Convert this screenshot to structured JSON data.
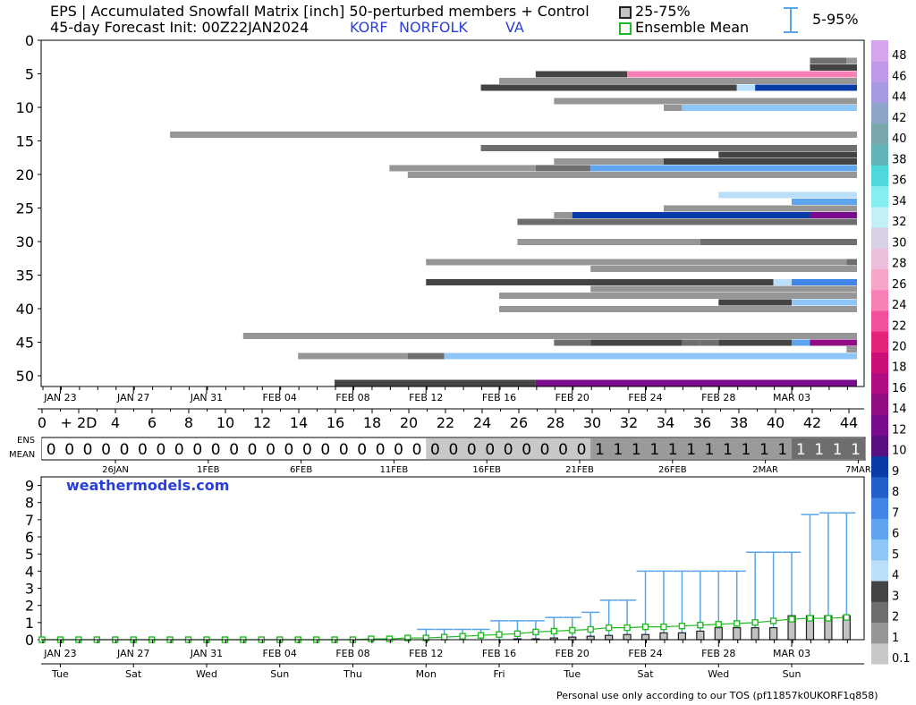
{
  "header": {
    "title_line1": "EPS | Accumulated Snowfall Matrix [inch]  50-perturbed members + Control",
    "title_line2": "45-day Forecast Init: 00Z22JAN2024",
    "station_code": "KORF",
    "station_name": "NORFOLK",
    "state": "VA",
    "legend_iqr": "25-75%",
    "legend_mean": "Ensemble Mean",
    "legend_range": "5-95%"
  },
  "watermark": "weathermodels.com",
  "footer": "Personal use only according to our TOS (pf11857k0UKORF1q858)",
  "ens_mean_label": [
    "ENS",
    "MEAN"
  ],
  "colors": {
    "iqr_box": "#c3c3c3",
    "mean": "#22bb22",
    "range": "#5aa5ea"
  },
  "chart_data": [
    {
      "type": "heatmap",
      "title": "Accumulated Snowfall Matrix [inch]",
      "y_axis_ticks": [
        "0",
        "5",
        "10",
        "15",
        "20",
        "25",
        "30",
        "35",
        "40",
        "45",
        "50"
      ],
      "date_ticks": [
        "JAN 23",
        "JAN 27",
        "JAN 31",
        "FEB 04",
        "FEB 08",
        "FEB 12",
        "FEB 16",
        "FEB 20",
        "FEB 24",
        "FEB 28",
        "MAR 03"
      ],
      "day_ticks": [
        "0",
        "+ 2D",
        "4",
        "6",
        "8",
        "10",
        "12",
        "14",
        "16",
        "18",
        "20",
        "22",
        "24",
        "26",
        "28",
        "30",
        "32",
        "34",
        "36",
        "38",
        "40",
        "42",
        "44"
      ],
      "colorbar": {
        "labels": [
          "0.1",
          "1",
          "2",
          "3",
          "4",
          "5",
          "6",
          "7",
          "8",
          "9",
          "10",
          "12",
          "14",
          "16",
          "18",
          "20",
          "22",
          "24",
          "26",
          "28",
          "30",
          "32",
          "34",
          "36",
          "38",
          "40",
          "42",
          "44",
          "46",
          "48"
        ],
        "colors": [
          "#c8c8c8",
          "#969696",
          "#6e6e6e",
          "#444444",
          "#b9dffb",
          "#8ec6f8",
          "#5fa4ee",
          "#3f86e6",
          "#2060c8",
          "#0a3ca8",
          "#581080",
          "#7a0a8e",
          "#920d84",
          "#b00c82",
          "#cc0e78",
          "#e6237b",
          "#f2509a",
          "#f880b6",
          "#f6a5c9",
          "#ecc0dc",
          "#d8d1e4",
          "#c2f0f6",
          "#84eef2",
          "#4fd8dc",
          "#5fb5b8",
          "#7aa7ab",
          "#8ea4c8",
          "#a79ae2",
          "#c09ae8",
          "#d6a4ec"
        ]
      },
      "members": [
        {
          "m": 3,
          "s": [
            [
              42,
              2
            ],
            [
              44,
              1
            ]
          ]
        },
        {
          "m": 4,
          "s": [
            [
              42,
              3
            ]
          ]
        },
        {
          "m": 5,
          "s": [
            [
              27,
              3
            ],
            [
              32,
              17
            ]
          ]
        },
        {
          "m": 6,
          "s": [
            [
              25,
              1
            ]
          ]
        },
        {
          "m": 7,
          "s": [
            [
              24,
              3
            ],
            [
              38,
              4
            ],
            [
              39,
              9
            ]
          ]
        },
        {
          "m": 9,
          "s": [
            [
              28,
              1
            ]
          ]
        },
        {
          "m": 10,
          "s": [
            [
              34,
              1
            ],
            [
              35,
              5
            ]
          ]
        },
        {
          "m": 14,
          "s": [
            [
              7,
              1
            ]
          ]
        },
        {
          "m": 16,
          "s": [
            [
              24,
              2
            ]
          ]
        },
        {
          "m": 18,
          "s": [
            [
              28,
              1
            ],
            [
              34,
              3
            ]
          ]
        },
        {
          "m": 17,
          "s": [
            [
              37,
              3
            ]
          ]
        },
        {
          "m": 19,
          "s": [
            [
              19,
              1
            ],
            [
              27,
              2
            ],
            [
              30,
              6
            ]
          ]
        },
        {
          "m": 20,
          "s": [
            [
              20,
              1
            ]
          ]
        },
        {
          "m": 23,
          "s": [
            [
              37,
              4
            ]
          ]
        },
        {
          "m": 24,
          "s": [
            [
              41,
              6
            ]
          ]
        },
        {
          "m": 25,
          "s": [
            [
              34,
              1
            ]
          ]
        },
        {
          "m": 26,
          "s": [
            [
              28,
              1
            ],
            [
              29,
              9
            ],
            [
              42,
              11
            ]
          ]
        },
        {
          "m": 27,
          "s": [
            [
              26,
              2
            ]
          ]
        },
        {
          "m": 30,
          "s": [
            [
              26,
              1
            ],
            [
              36,
              2
            ]
          ]
        },
        {
          "m": 33,
          "s": [
            [
              21,
              1
            ],
            [
              44,
              2
            ]
          ]
        },
        {
          "m": 34,
          "s": [
            [
              30,
              1
            ]
          ]
        },
        {
          "m": 36,
          "s": [
            [
              21,
              3
            ],
            [
              40,
              4
            ],
            [
              41,
              7
            ]
          ]
        },
        {
          "m": 37,
          "s": [
            [
              30,
              1
            ]
          ]
        },
        {
          "m": 38,
          "s": [
            [
              25,
              1
            ]
          ]
        },
        {
          "m": 39,
          "s": [
            [
              37,
              3
            ],
            [
              41,
              5
            ]
          ]
        },
        {
          "m": 40,
          "s": [
            [
              25,
              1
            ]
          ]
        },
        {
          "m": 44,
          "s": [
            [
              11,
              1
            ]
          ]
        },
        {
          "m": 45,
          "s": [
            [
              28,
              2
            ],
            [
              30,
              3
            ],
            [
              35,
              2
            ],
            [
              36,
              2
            ],
            [
              37,
              3
            ],
            [
              41,
              6
            ],
            [
              42,
              12
            ]
          ]
        },
        {
          "m": 46,
          "s": [
            [
              44,
              1
            ]
          ]
        },
        {
          "m": 47,
          "s": [
            [
              14,
              1
            ],
            [
              20,
              2
            ],
            [
              22,
              5
            ]
          ]
        },
        {
          "m": 51,
          "s": [
            [
              16,
              3
            ],
            [
              27,
              11
            ]
          ]
        }
      ]
    },
    {
      "type": "table",
      "title": "ENS MEAN",
      "date_ticks": [
        "26JAN",
        "1FEB",
        "6FEB",
        "11FEB",
        "16FEB",
        "21FEB",
        "26FEB",
        "2MAR",
        "7MAR"
      ],
      "values": [
        0,
        0,
        0,
        0,
        0,
        0,
        0,
        0,
        0,
        0,
        0,
        0,
        0,
        0,
        0,
        0,
        0,
        0,
        0,
        0,
        0,
        0,
        0,
        0,
        0,
        0,
        0,
        0,
        0,
        0,
        1,
        1,
        1,
        1,
        1,
        1,
        1,
        1,
        1,
        1,
        1,
        1,
        1,
        1,
        1
      ]
    },
    {
      "type": "bar",
      "title": "",
      "ylabel": "",
      "ylim": [
        0,
        9.5
      ],
      "y_ticks": [
        "0",
        "1",
        "2",
        "3",
        "4",
        "5",
        "6",
        "7",
        "8",
        "9"
      ],
      "date_ticks": [
        "JAN 23",
        "JAN 27",
        "JAN 31",
        "FEB 04",
        "FEB 08",
        "FEB 12",
        "FEB 16",
        "FEB 20",
        "FEB 24",
        "FEB 28",
        "MAR 03"
      ],
      "weekday_ticks": [
        "Tue",
        "Sat",
        "Wed",
        "Sun",
        "Thu",
        "Mon",
        "Fri",
        "Tue",
        "Sat",
        "Wed",
        "Sun"
      ],
      "series": [
        {
          "name": "25-75%",
          "values": [
            0,
            0,
            0,
            0,
            0,
            0,
            0,
            0,
            0,
            0,
            0,
            0,
            0,
            0,
            0,
            0,
            0,
            0,
            0,
            0,
            0,
            0,
            0,
            0,
            0,
            0,
            0.05,
            0.05,
            0.1,
            0.15,
            0.2,
            0.25,
            0.3,
            0.3,
            0.4,
            0.4,
            0.5,
            0.7,
            0.7,
            0.7,
            0.7,
            1.4,
            1.4,
            1.4,
            1.4
          ]
        },
        {
          "name": "Ensemble Mean",
          "values": [
            0,
            0,
            0,
            0,
            0,
            0,
            0,
            0,
            0,
            0,
            0,
            0,
            0,
            0,
            0,
            0,
            0,
            0,
            0.05,
            0.05,
            0.1,
            0.1,
            0.15,
            0.2,
            0.25,
            0.3,
            0.35,
            0.45,
            0.5,
            0.55,
            0.6,
            0.7,
            0.7,
            0.75,
            0.75,
            0.8,
            0.85,
            0.9,
            0.95,
            1.0,
            1.1,
            1.2,
            1.25,
            1.25,
            1.3
          ]
        },
        {
          "name": "5-95%",
          "values": [
            0,
            0,
            0,
            0,
            0,
            0,
            0,
            0,
            0,
            0,
            0,
            0,
            0,
            0,
            0,
            0,
            0,
            0,
            0,
            0,
            0,
            0.6,
            0.6,
            0.6,
            0.6,
            1.1,
            1.1,
            1.1,
            1.3,
            1.3,
            1.6,
            2.3,
            2.3,
            4.0,
            4.0,
            4.0,
            4.0,
            4.0,
            4.0,
            5.1,
            5.1,
            5.1,
            7.3,
            7.4,
            7.4
          ]
        }
      ]
    }
  ]
}
